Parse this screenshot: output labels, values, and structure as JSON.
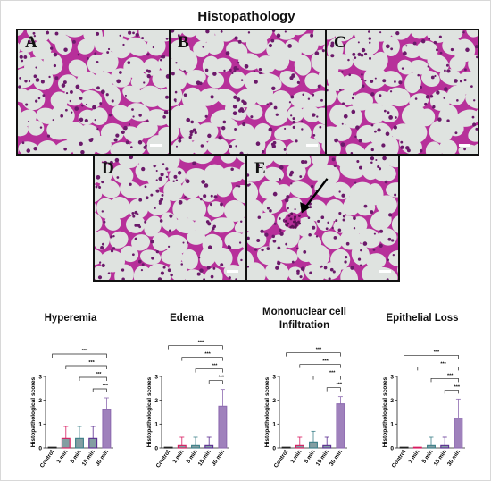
{
  "figure_title": "Histopathology",
  "micrographs": [
    {
      "letter": "A",
      "arrow": false
    },
    {
      "letter": "B",
      "arrow": false
    },
    {
      "letter": "C",
      "arrow": false
    },
    {
      "letter": "D",
      "arrow": false
    },
    {
      "letter": "E",
      "arrow": true
    }
  ],
  "colors": {
    "tissue": "#b7309a",
    "tissue_light": "#d98ccd",
    "background": "#dfe3e0"
  },
  "chart_data": [
    {
      "type": "bar",
      "title": "Hyperemia",
      "ylabel": "Histopathological scores",
      "categories": [
        "Control",
        "1 min",
        "5 min",
        "15 min",
        "30 min"
      ],
      "values": [
        0.0,
        0.4,
        0.4,
        0.4,
        1.6
      ],
      "errors": [
        0.0,
        0.5,
        0.5,
        0.5,
        0.5
      ],
      "ylim": [
        0,
        3
      ],
      "yticks": [
        0,
        1,
        2,
        3
      ],
      "bar_colors": [
        "#222222",
        "#d81b60",
        "#3c7f88",
        "#5b2c91",
        "#8e6bb0"
      ],
      "significance": [
        "***",
        "***",
        "***",
        "***"
      ]
    },
    {
      "type": "bar",
      "title": "Edema",
      "ylabel": "Histopathological scores",
      "categories": [
        "Control",
        "1 min",
        "5 min",
        "15 min",
        "30 min"
      ],
      "values": [
        0.0,
        0.1,
        0.1,
        0.1,
        1.75
      ],
      "errors": [
        0.0,
        0.35,
        0.35,
        0.35,
        0.7
      ],
      "ylim": [
        0,
        3
      ],
      "yticks": [
        0,
        1,
        2,
        3
      ],
      "bar_colors": [
        "#222222",
        "#d81b60",
        "#3c7f88",
        "#5b2c91",
        "#8e6bb0"
      ],
      "significance": [
        "***",
        "***",
        "***",
        "***"
      ]
    },
    {
      "type": "bar",
      "title": "Mononuclear cell Infiltration",
      "ylabel": "Histopathological scores",
      "categories": [
        "Control",
        "1 min",
        "5 min",
        "15 min",
        "30 min"
      ],
      "values": [
        0.0,
        0.1,
        0.25,
        0.1,
        1.85
      ],
      "errors": [
        0.0,
        0.35,
        0.45,
        0.35,
        0.3
      ],
      "ylim": [
        0,
        3
      ],
      "yticks": [
        0,
        1,
        2,
        3
      ],
      "bar_colors": [
        "#222222",
        "#d81b60",
        "#3c7f88",
        "#5b2c91",
        "#8e6bb0"
      ],
      "significance": [
        "***",
        "***",
        "***",
        "***"
      ]
    },
    {
      "type": "bar",
      "title": "Epithelial Loss",
      "ylabel": "Histopathological scores",
      "categories": [
        "Control",
        "1 min",
        "5 min",
        "15 min",
        "30 min"
      ],
      "values": [
        0.0,
        0.0,
        0.1,
        0.1,
        1.25
      ],
      "errors": [
        0.0,
        0.0,
        0.35,
        0.35,
        0.8
      ],
      "ylim": [
        0,
        3
      ],
      "yticks": [
        0,
        1,
        2,
        3
      ],
      "bar_colors": [
        "#222222",
        "#d81b60",
        "#3c7f88",
        "#5b2c91",
        "#8e6bb0"
      ],
      "significance": [
        "***",
        "***",
        "***",
        "***"
      ]
    }
  ]
}
